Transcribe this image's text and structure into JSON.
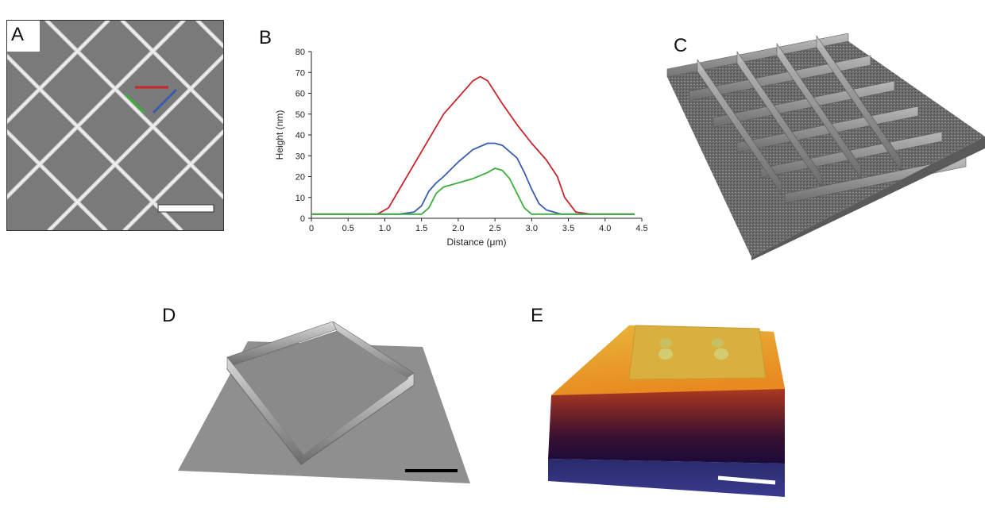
{
  "panels": {
    "a": {
      "label": "A"
    },
    "b": {
      "label": "B"
    },
    "c": {
      "label": "C"
    },
    "d": {
      "label": "D"
    },
    "e": {
      "label": "E"
    }
  },
  "colors": {
    "red": "#c8242b",
    "blue": "#3a5cb0",
    "green": "#3aae3a"
  },
  "chart_data": {
    "type": "line",
    "xlabel": "Distance (μm)",
    "ylabel": "Height (nm)",
    "xlim": [
      0,
      4.5
    ],
    "ylim": [
      0,
      80
    ],
    "xticks": [
      "0",
      "0.5",
      "1.0",
      "1.5",
      "2.0",
      "2.5",
      "3.0",
      "3.5",
      "4.0",
      "4.5"
    ],
    "yticks": [
      "0",
      "10",
      "20",
      "30",
      "40",
      "50",
      "60",
      "70",
      "80"
    ],
    "grid": false,
    "series": [
      {
        "color": "#c8242b",
        "x": [
          0,
          0.3,
          0.6,
          0.9,
          1.05,
          1.2,
          1.4,
          1.6,
          1.8,
          2.0,
          2.2,
          2.3,
          2.4,
          2.6,
          2.8,
          3.0,
          3.2,
          3.35,
          3.45,
          3.6,
          3.8,
          4.0,
          4.2,
          4.4
        ],
        "y": [
          2,
          2,
          2,
          2,
          5,
          14,
          26,
          38,
          50,
          58,
          66,
          68,
          66,
          55,
          45,
          36,
          28,
          20,
          10,
          3,
          2,
          2,
          2,
          2
        ]
      },
      {
        "color": "#3a5cb0",
        "x": [
          0,
          0.3,
          0.6,
          0.9,
          1.2,
          1.4,
          1.5,
          1.6,
          1.7,
          1.8,
          2.0,
          2.2,
          2.4,
          2.5,
          2.6,
          2.8,
          2.9,
          3.0,
          3.1,
          3.2,
          3.4,
          3.6,
          3.8,
          4.0,
          4.2,
          4.4
        ],
        "y": [
          2,
          2,
          2,
          2,
          2,
          3,
          6,
          13,
          17,
          20,
          27,
          33,
          36,
          36,
          35,
          29,
          22,
          14,
          7,
          4,
          2,
          2,
          2,
          2,
          2,
          2
        ]
      },
      {
        "color": "#3aae3a",
        "x": [
          0,
          0.3,
          0.6,
          0.9,
          1.2,
          1.5,
          1.6,
          1.7,
          1.8,
          2.0,
          2.2,
          2.4,
          2.5,
          2.6,
          2.7,
          2.8,
          2.9,
          3.0,
          3.2,
          3.4,
          3.6,
          3.8,
          4.0,
          4.2,
          4.4
        ],
        "y": [
          2,
          2,
          2,
          2,
          2,
          2,
          5,
          12,
          15,
          17,
          19,
          22,
          24,
          23,
          19,
          12,
          5,
          2,
          2,
          2,
          2,
          2,
          2,
          2,
          2
        ]
      }
    ]
  }
}
